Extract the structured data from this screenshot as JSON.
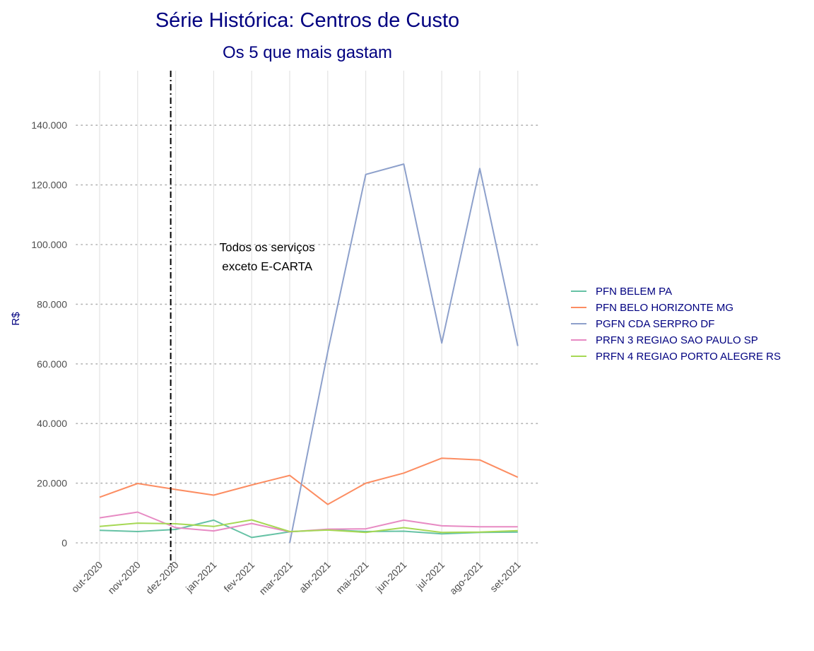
{
  "chart_data": {
    "type": "line",
    "title": "Série Histórica: Centros de Custo",
    "subtitle": "Os 5 que mais gastam",
    "xlabel": "",
    "ylabel": "R$",
    "ylim": [
      0,
      155000
    ],
    "y_ticks": [
      0,
      20000,
      40000,
      60000,
      80000,
      100000,
      120000,
      140000
    ],
    "y_tick_labels": [
      "0",
      "20.000",
      "40.000",
      "60.000",
      "80.000",
      "100.000",
      "120.000",
      "140.000"
    ],
    "categories": [
      "out-2020",
      "nov-2020",
      "dez-2020",
      "jan-2021",
      "fev-2021",
      "mar-2021",
      "abr-2021",
      "mai-2021",
      "jun-2021",
      "jul-2021",
      "ago-2021",
      "set-2021"
    ],
    "grid": true,
    "legend_position": "right",
    "vline": {
      "at": "dez-2020",
      "style": "dashdot",
      "color": "#000000"
    },
    "annotation": {
      "text_lines": [
        "Todos os serviços",
        "exceto E-CARTA"
      ],
      "x": "fev-2021",
      "y": 96000
    },
    "series": [
      {
        "name": "PFN BELEM PA",
        "color": "#66C2A5",
        "values": [
          4200,
          3800,
          4500,
          7600,
          1800,
          3700,
          4400,
          3800,
          3900,
          3000,
          3500,
          3600
        ]
      },
      {
        "name": "PFN BELO HORIZONTE MG",
        "color": "#FC8D62",
        "values": [
          15300,
          19900,
          17900,
          16000,
          19400,
          22600,
          12900,
          20000,
          23400,
          28400,
          27800,
          22000
        ]
      },
      {
        "name": "PGFN CDA SERPRO DF",
        "color": "#8DA0CB",
        "values": [
          null,
          null,
          null,
          null,
          null,
          0,
          64000,
          123500,
          127000,
          67000,
          125500,
          66000
        ]
      },
      {
        "name": "PRFN 3 REGIAO SAO PAULO SP",
        "color": "#E78AC3",
        "values": [
          8400,
          10300,
          5100,
          4000,
          6500,
          3700,
          4600,
          4700,
          7600,
          5700,
          5400,
          5400
        ]
      },
      {
        "name": "PRFN 4 REGIAO PORTO ALEGRE RS",
        "color": "#A6D854",
        "values": [
          5500,
          6600,
          6400,
          5500,
          7700,
          3800,
          4300,
          3500,
          5100,
          3500,
          3600,
          4100
        ]
      }
    ]
  }
}
